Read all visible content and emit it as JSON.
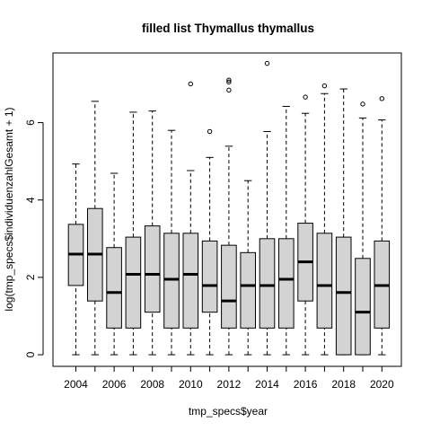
{
  "chart_data": {
    "type": "boxplot",
    "title": "filled list Thymallus thymallus",
    "xlabel": "tmp_specs$year",
    "ylabel": "log(tmp_specs$individuenzahlGesamt + 1)",
    "categories": [
      "2004",
      "2005",
      "2006",
      "2007",
      "2008",
      "2009",
      "2010",
      "2011",
      "2012",
      "2013",
      "2014",
      "2015",
      "2016",
      "2017",
      "2018",
      "2019",
      "2020"
    ],
    "x_tick_labels": [
      "2004",
      "2006",
      "2008",
      "2010",
      "2012",
      "2014",
      "2016",
      "2018",
      "2020"
    ],
    "y_ticks": [
      0,
      2,
      4,
      6
    ],
    "ylim": [
      -0.3,
      7.8
    ],
    "box_fill": "#d3d3d3",
    "grid": false,
    "boxes": [
      {
        "year": "2004",
        "min": 0,
        "q1": 1.79,
        "median": 2.6,
        "q3": 3.37,
        "max": 4.93,
        "outliers": []
      },
      {
        "year": "2005",
        "min": 0,
        "q1": 1.39,
        "median": 2.6,
        "q3": 3.78,
        "max": 6.55,
        "outliers": []
      },
      {
        "year": "2006",
        "min": 0,
        "q1": 0.69,
        "median": 1.61,
        "q3": 2.77,
        "max": 4.69,
        "outliers": []
      },
      {
        "year": "2007",
        "min": 0,
        "q1": 0.69,
        "median": 2.08,
        "q3": 3.04,
        "max": 6.27,
        "outliers": []
      },
      {
        "year": "2008",
        "min": 0,
        "q1": 1.1,
        "median": 2.08,
        "q3": 3.33,
        "max": 6.3,
        "outliers": []
      },
      {
        "year": "2009",
        "min": 0,
        "q1": 0.69,
        "median": 1.95,
        "q3": 3.14,
        "max": 5.8,
        "outliers": []
      },
      {
        "year": "2010",
        "min": 0,
        "q1": 0.69,
        "median": 2.08,
        "q3": 3.14,
        "max": 4.76,
        "outliers": [
          7.0
        ]
      },
      {
        "year": "2011",
        "min": 0,
        "q1": 1.1,
        "median": 1.79,
        "q3": 2.94,
        "max": 5.1,
        "outliers": [
          5.77
        ]
      },
      {
        "year": "2012",
        "min": 0,
        "q1": 0.69,
        "median": 1.39,
        "q3": 2.83,
        "max": 5.39,
        "outliers": [
          6.84,
          7.05,
          7.1
        ]
      },
      {
        "year": "2013",
        "min": 0,
        "q1": 0.69,
        "median": 1.79,
        "q3": 2.64,
        "max": 4.5,
        "outliers": []
      },
      {
        "year": "2014",
        "min": 0,
        "q1": 0.69,
        "median": 1.79,
        "q3": 3.0,
        "max": 5.77,
        "outliers": [
          7.53
        ]
      },
      {
        "year": "2015",
        "min": 0,
        "q1": 0.69,
        "median": 1.95,
        "q3": 3.0,
        "max": 6.42,
        "outliers": []
      },
      {
        "year": "2016",
        "min": 0,
        "q1": 1.39,
        "median": 2.4,
        "q3": 3.4,
        "max": 6.24,
        "outliers": [
          6.66
        ]
      },
      {
        "year": "2017",
        "min": 0,
        "q1": 0.69,
        "median": 1.79,
        "q3": 3.14,
        "max": 6.75,
        "outliers": [
          6.95
        ]
      },
      {
        "year": "2018",
        "min": 0,
        "q1": 0.0,
        "median": 1.61,
        "q3": 3.04,
        "max": 6.87,
        "outliers": []
      },
      {
        "year": "2019",
        "min": 0,
        "q1": 0.0,
        "median": 1.1,
        "q3": 2.49,
        "max": 6.12,
        "outliers": [
          6.48
        ]
      },
      {
        "year": "2020",
        "min": 0,
        "q1": 0.69,
        "median": 1.79,
        "q3": 2.94,
        "max": 6.07,
        "outliers": [
          6.62
        ]
      }
    ]
  }
}
